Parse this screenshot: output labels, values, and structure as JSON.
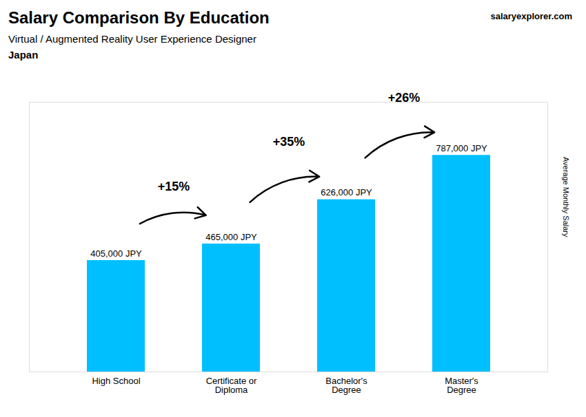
{
  "chart_data": {
    "type": "bar",
    "title": "Salary Comparison By Education",
    "subtitle": "Virtual / Augmented Reality User Experience Designer",
    "country": "Japan",
    "watermark": "salaryexplorer.com",
    "ylabel": "Average Monthly Salary",
    "categories": [
      "High School",
      "Certificate or\nDiploma",
      "Bachelor's\nDegree",
      "Master's\nDegree"
    ],
    "values": [
      405000,
      465000,
      626000,
      787000
    ],
    "value_labels": [
      "405,000 JPY",
      "465,000 JPY",
      "626,000 JPY",
      "787,000 JPY"
    ],
    "data_labels": true,
    "annotations": [
      "+15%",
      "+35%",
      "+26%"
    ],
    "color": "#00BFFF",
    "ylim": [
      0,
      980000
    ],
    "tick_labels": "x",
    "grid": false
  }
}
